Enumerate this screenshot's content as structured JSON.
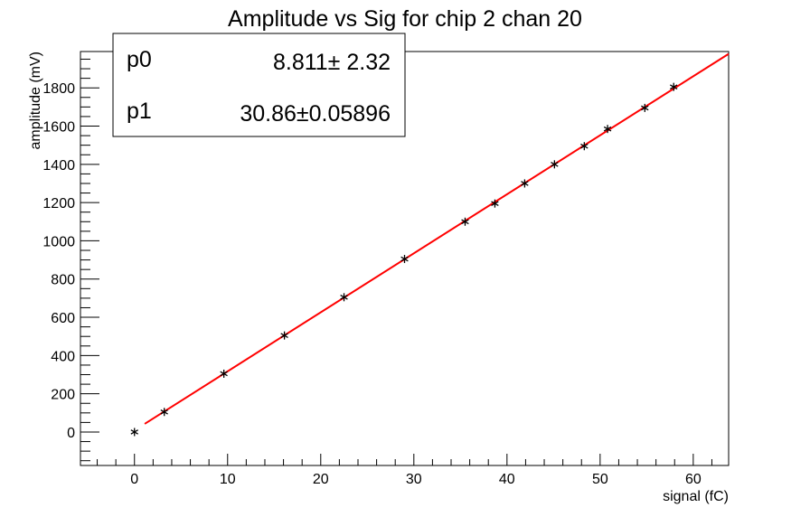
{
  "chart_data": {
    "type": "scatter",
    "title": "Amplitude vs Sig for chip 2 chan 20",
    "xlabel": "signal (fC)",
    "ylabel": "amplitude (mV)",
    "xlim": [
      -5.8,
      63.8
    ],
    "ylim": [
      -175,
      1990
    ],
    "x_ticks": [
      0,
      10,
      20,
      30,
      40,
      50,
      60
    ],
    "y_ticks": [
      0,
      200,
      400,
      600,
      800,
      1000,
      1200,
      1400,
      1600,
      1800
    ],
    "x_tick_labels": [
      "0",
      "10",
      "20",
      "30",
      "40",
      "50",
      "60"
    ],
    "y_tick_labels": [
      "0",
      "200",
      "400",
      "600",
      "800",
      "1000",
      "1200",
      "1400",
      "1600",
      "1800"
    ],
    "grid": false,
    "marker": "asterisk",
    "series": [
      {
        "x": [
          0,
          3.2,
          9.6,
          16.1,
          22.5,
          29.0,
          35.5,
          38.7,
          41.9,
          45.1,
          48.3,
          50.8,
          54.8,
          57.9
        ],
        "y": [
          0,
          105,
          305,
          505,
          705,
          905,
          1100,
          1195,
          1300,
          1400,
          1495,
          1585,
          1695,
          1805
        ],
        "color": "#000000"
      }
    ],
    "fit": {
      "color": "#ff0000",
      "x_range": [
        1.1,
        63.8
      ],
      "p0": 8.811,
      "p1": 30.86
    },
    "stats_box": {
      "rows": [
        {
          "name": "p0",
          "value": "8.811±  2.32"
        },
        {
          "name": "p1",
          "value": "30.86±0.05896"
        }
      ]
    }
  }
}
